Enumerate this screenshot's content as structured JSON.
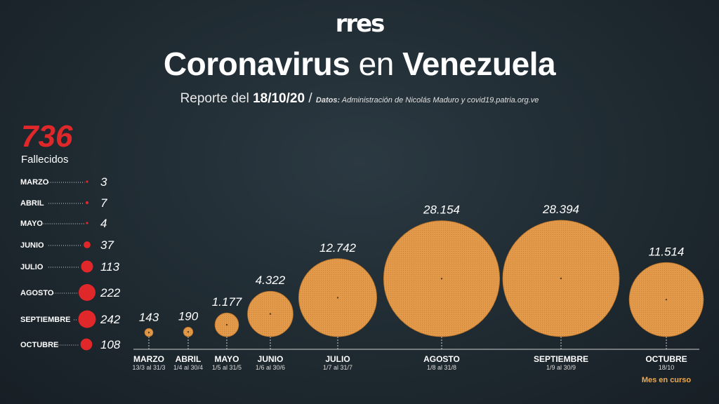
{
  "header": {
    "logo": "rr",
    "logo_tail": "es",
    "title_part1": "Coronavirus",
    "title_part2": " en ",
    "title_part3": "Venezuela",
    "subtitle_prefix": "Reporte del ",
    "subtitle_date": "18/10/20",
    "subtitle_sep": " / ",
    "source_label": "Datos:",
    "source_text": " Administración de Nicolás Maduro y covid19.patria.org.ve"
  },
  "deaths": {
    "total": "736",
    "label": "Fallecidos"
  },
  "colors": {
    "bubble": "#e39a4a",
    "bubble_stroke": "#b8732b",
    "deaths": "#e0282b",
    "note": "#f0a94e"
  },
  "chart_data": [
    {
      "type": "bubble",
      "title": "",
      "categories": [
        "MARZO",
        "ABRIL",
        "MAYO",
        "JUNIO",
        "JULIO",
        "AGOSTO",
        "SEPTIEMBRE",
        "OCTUBRE"
      ],
      "ranges": [
        "13/3 al 31/3",
        "1/4 al 30/4",
        "1/5 al 31/5",
        "1/6 al 30/6",
        "1/7 al 31/7",
        "1/8 al 31/8",
        "1/9 al 30/9",
        "18/10"
      ],
      "values": [
        143,
        190,
        1177,
        4322,
        12742,
        28154,
        28394,
        11514
      ],
      "value_labels": [
        "143",
        "190",
        "1.177",
        "4.322",
        "12.742",
        "28.154",
        "28.394",
        "11.514"
      ],
      "note": "Mes en curso"
    },
    {
      "type": "bubble",
      "title": "",
      "categories": [
        "MARZO",
        "ABRIL",
        "MAYO",
        "JUNIO",
        "JULIO",
        "AGOSTO",
        "SEPTIEMBRE",
        "OCTUBRE"
      ],
      "values": [
        3,
        7,
        4,
        37,
        113,
        222,
        242,
        108
      ],
      "value_labels": [
        "3",
        "7",
        "4",
        "37",
        "113",
        "222",
        "242",
        "108"
      ]
    }
  ]
}
